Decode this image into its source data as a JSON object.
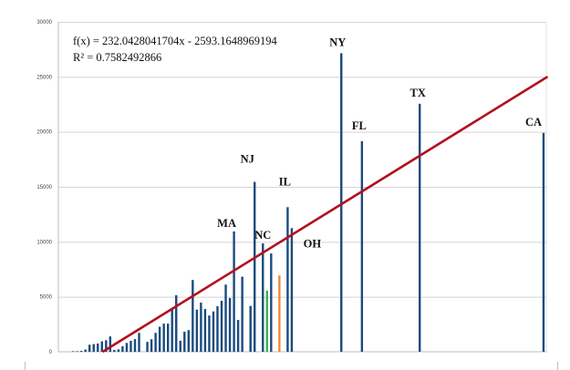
{
  "chart_data": {
    "type": "bar",
    "title": "",
    "xlabel": "",
    "ylabel": "",
    "ylim": [
      0,
      30000
    ],
    "xlim": [
      0,
      119
    ],
    "grid": true,
    "yticks": [
      0,
      5000,
      10000,
      15000,
      20000,
      25000,
      30000
    ],
    "ytick_labels": [
      "0",
      "5000",
      "10000",
      "15000",
      "20000",
      "25000",
      "30000"
    ],
    "colors": {
      "bar": "#1a4a7e",
      "highlight_green": "#3cb34a",
      "highlight_orange": "#ea8a3c",
      "trendline": "#b3101f",
      "grid": "#d4d4d4"
    },
    "bars": [
      {
        "x": 4,
        "y": 50
      },
      {
        "x": 5,
        "y": 50
      },
      {
        "x": 6,
        "y": 80
      },
      {
        "x": 7,
        "y": 200
      },
      {
        "x": 8,
        "y": 640
      },
      {
        "x": 9,
        "y": 700
      },
      {
        "x": 10,
        "y": 750
      },
      {
        "x": 11,
        "y": 950
      },
      {
        "x": 12,
        "y": 1050
      },
      {
        "x": 13,
        "y": 1400
      },
      {
        "x": 14,
        "y": 170
      },
      {
        "x": 15,
        "y": 220
      },
      {
        "x": 16,
        "y": 500
      },
      {
        "x": 17,
        "y": 800
      },
      {
        "x": 18,
        "y": 1000
      },
      {
        "x": 19,
        "y": 1150
      },
      {
        "x": 20,
        "y": 1720
      },
      {
        "x": 22,
        "y": 900
      },
      {
        "x": 23,
        "y": 1140
      },
      {
        "x": 24,
        "y": 1720
      },
      {
        "x": 25,
        "y": 2280
      },
      {
        "x": 26,
        "y": 2560
      },
      {
        "x": 27,
        "y": 2560
      },
      {
        "x": 28,
        "y": 3890
      },
      {
        "x": 29,
        "y": 5140
      },
      {
        "x": 30,
        "y": 1000
      },
      {
        "x": 31,
        "y": 1830
      },
      {
        "x": 32,
        "y": 1970
      },
      {
        "x": 33,
        "y": 6530
      },
      {
        "x": 34,
        "y": 3830
      },
      {
        "x": 35,
        "y": 4470
      },
      {
        "x": 36,
        "y": 3890
      },
      {
        "x": 37,
        "y": 3300
      },
      {
        "x": 38,
        "y": 3670
      },
      {
        "x": 39,
        "y": 4140
      },
      {
        "x": 40,
        "y": 4640
      },
      {
        "x": 41,
        "y": 6110
      },
      {
        "x": 42,
        "y": 4890
      },
      {
        "x": 43,
        "y": 10940,
        "label": "MA"
      },
      {
        "x": 44,
        "y": 2890
      },
      {
        "x": 45,
        "y": 6830
      },
      {
        "x": 47,
        "y": 4170
      },
      {
        "x": 48,
        "y": 15450,
        "label": "NJ"
      },
      {
        "x": 50,
        "y": 9860,
        "label": "NC"
      },
      {
        "x": 51,
        "y": 5560,
        "color": "green"
      },
      {
        "x": 52,
        "y": 8940
      },
      {
        "x": 54,
        "y": 6940,
        "color": "orange",
        "label": "OH"
      },
      {
        "x": 56,
        "y": 13150,
        "label": "IL"
      },
      {
        "x": 57,
        "y": 11250
      },
      {
        "x": 69,
        "y": 27150,
        "label": "NY"
      },
      {
        "x": 74,
        "y": 19150,
        "label": "FL"
      },
      {
        "x": 88,
        "y": 22550,
        "label": "TX"
      },
      {
        "x": 118,
        "y": 19900,
        "label": "CA"
      }
    ],
    "trendline": {
      "type": "linear",
      "slope": 232.0428041704,
      "intercept": -2593.1648969194,
      "r_squared": 0.7582492866,
      "equation_text": "f(x) = 232.0428041704x - 2593.1648969194",
      "r2_text": "R² = 0.7582492866"
    }
  }
}
